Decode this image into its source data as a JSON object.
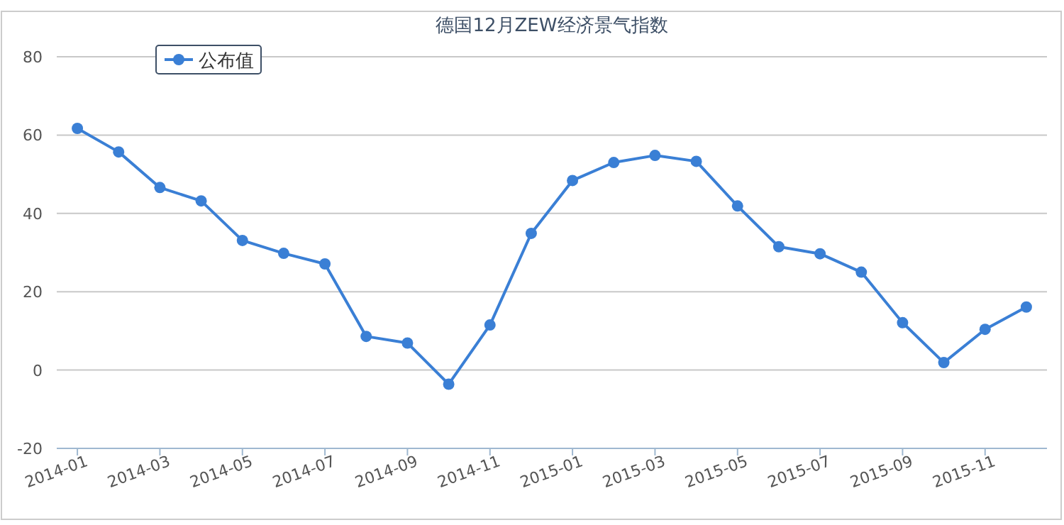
{
  "chart_data": {
    "type": "line",
    "title": "德国12月ZEW经济景气指数",
    "categories": [
      "2014-01",
      null,
      "2014-03",
      null,
      "2014-05",
      null,
      "2014-07",
      null,
      "2014-09",
      null,
      "2014-11",
      null,
      "2015-01",
      null,
      "2015-03",
      null,
      "2015-05",
      null,
      "2015-07",
      null,
      "2015-09",
      null,
      "2015-11",
      null
    ],
    "series": [
      {
        "name": "公布值",
        "color": "#3a7fd5",
        "values": [
          61.7,
          55.7,
          46.6,
          43.2,
          33.1,
          29.8,
          27.1,
          8.6,
          6.9,
          -3.6,
          11.5,
          34.9,
          48.4,
          53.0,
          54.8,
          53.3,
          41.9,
          31.5,
          29.7,
          25.0,
          12.1,
          1.9,
          10.4,
          16.1
        ]
      }
    ],
    "ylim": [
      -20,
      80
    ],
    "yticks": [
      -20,
      0,
      20,
      40,
      60,
      80
    ],
    "grid": "y",
    "legend": "top left",
    "marker": "circle"
  }
}
